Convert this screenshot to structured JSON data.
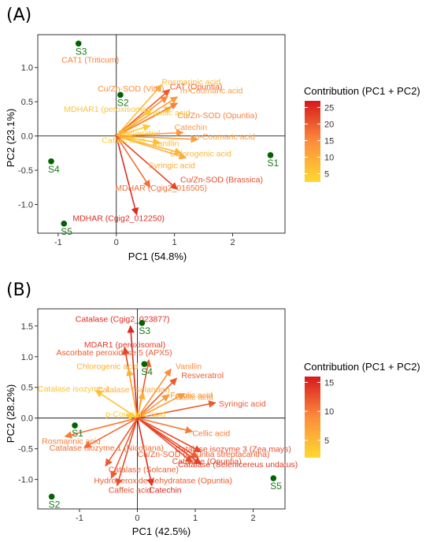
{
  "chart_data": [
    {
      "type": "scatter",
      "panel_label": "(A)",
      "xlabel": "PC1 (54.8%)",
      "ylabel": "PC2 (23.1%)",
      "xlim": [
        -1.35,
        2.9
      ],
      "ylim": [
        -1.42,
        1.48
      ],
      "xticks": [
        -1,
        0,
        1,
        2
      ],
      "yticks": [
        -1.0,
        -0.5,
        0.0,
        0.5,
        1.0
      ],
      "ytick_labels": [
        "-1.0",
        "-0.5",
        "0.0",
        "0.5",
        "1.0"
      ],
      "legend_title": "Contribution (PC1 + PC2)",
      "legend_placement": "right",
      "legend_range": [
        2.5,
        27
      ],
      "legend_ticks": [
        5,
        10,
        15,
        20,
        25
      ],
      "colors": {
        "low": "#ffd92f",
        "mid": "#fc8d3c",
        "high": "#d7191c",
        "sample": "#006400",
        "sample_label": "#1a7a1a"
      },
      "samples": [
        {
          "name": "S1",
          "x": 2.65,
          "y": -0.28
        },
        {
          "name": "S2",
          "x": 0.07,
          "y": 0.6
        },
        {
          "name": "S3",
          "x": -0.65,
          "y": 1.35
        },
        {
          "name": "S4",
          "x": -1.12,
          "y": -0.37
        },
        {
          "name": "S5",
          "x": -0.9,
          "y": -1.28
        }
      ],
      "variables": [
        {
          "name": "CAT1 (Triticum)",
          "x": -0.02,
          "y": 0.02,
          "contrib": 16
        },
        {
          "name": "Rosmarinic acid",
          "x": 0.78,
          "y": 0.75,
          "contrib": 8
        },
        {
          "name": "CAT (Opuntia)",
          "x": 0.92,
          "y": 0.68,
          "contrib": 20
        },
        {
          "name": "Cu/Zn-SOD (Vitis)",
          "x": 0.88,
          "y": 0.58,
          "contrib": 15
        },
        {
          "name": "m-Coumaric acid",
          "x": 1.05,
          "y": 0.57,
          "contrib": 12
        },
        {
          "name": "MDHAR1 (peroxisomal)",
          "x": 0.95,
          "y": 0.42,
          "contrib": 6
        },
        {
          "name": "Ferulic acid",
          "x": 0.6,
          "y": 0.38,
          "contrib": 5
        },
        {
          "name": "Cu/Zn-SOD (Opuntia)",
          "x": 1.05,
          "y": 0.48,
          "contrib": 16
        },
        {
          "name": "Resveratrol",
          "x": 0.58,
          "y": 0.15,
          "contrib": 5
        },
        {
          "name": "Catechin",
          "x": 1.15,
          "y": 0.05,
          "contrib": 13
        },
        {
          "name": "Vanillin",
          "x": 0.75,
          "y": -0.1,
          "contrib": 7
        },
        {
          "name": "Caffeic acid",
          "x": 0.3,
          "y": -0.02,
          "contrib": 4
        },
        {
          "name": "p-Coumaric acid",
          "x": 1.4,
          "y": -0.05,
          "contrib": 12
        },
        {
          "name": "Chlorogenic acid",
          "x": 1.12,
          "y": -0.25,
          "contrib": 8
        },
        {
          "name": "Syringic acid",
          "x": 1.2,
          "y": -0.32,
          "contrib": 10
        },
        {
          "name": "Cu/Zn-SOD (Brassica)",
          "x": 1.05,
          "y": -0.78,
          "contrib": 22
        },
        {
          "name": "MDHAR (Cgig2_016505)",
          "x": 0.58,
          "y": -0.75,
          "contrib": 18
        },
        {
          "name": "MDHAR (Cgig2_012250)",
          "x": 0.35,
          "y": -1.15,
          "contrib": 25
        }
      ],
      "label_style": [
        {
          "dx": -0.92,
          "dy": 1.05,
          "size": 10.5
        },
        {
          "dx": 0.0,
          "dy": 0.0,
          "size": 10.5
        },
        {
          "dx": 0.0,
          "dy": 0.0,
          "size": 10.5
        },
        {
          "dx": -1.2,
          "dy": 0.07,
          "size": 10.5
        },
        {
          "dx": 0.05,
          "dy": 0.05,
          "size": 10.5
        },
        {
          "dx": -1.85,
          "dy": -0.07,
          "size": 10.5
        },
        {
          "dx": -0.06,
          "dy": -0.08,
          "size": 10.5
        },
        {
          "dx": 0.0,
          "dy": -0.22,
          "size": 10.5
        },
        {
          "dx": -0.55,
          "dy": -0.15,
          "size": 10.5
        },
        {
          "dx": -0.15,
          "dy": 0.04,
          "size": 10.5
        },
        {
          "dx": -0.12,
          "dy": -0.05,
          "size": 10.5
        },
        {
          "dx": -0.55,
          "dy": -0.08,
          "size": 10.5
        },
        {
          "dx": -0.05,
          "dy": 0.0,
          "size": 10.5
        },
        {
          "dx": -0.2,
          "dy": -0.05,
          "size": 10.5
        },
        {
          "dx": -0.65,
          "dy": -0.15,
          "size": 10.5
        },
        {
          "dx": 0.05,
          "dy": 0.1,
          "size": 10.5
        },
        {
          "dx": -0.6,
          "dy": -0.05,
          "size": 10.5
        },
        {
          "dx": -1.1,
          "dy": -0.09,
          "size": 10.5
        }
      ]
    },
    {
      "type": "scatter",
      "panel_label": "(B)",
      "xlabel": "PC1 (42.5%)",
      "ylabel": "PC2 (28.2%)",
      "xlim": [
        -1.72,
        2.55
      ],
      "ylim": [
        -1.48,
        1.78
      ],
      "xticks": [
        -1,
        0,
        1,
        2
      ],
      "yticks": [
        -1.0,
        -0.5,
        0.0,
        0.5,
        1.0,
        1.5
      ],
      "ytick_labels": [
        "-1.0",
        "-0.5",
        "0.0",
        "0.5",
        "1.0",
        "1.5"
      ],
      "legend_title": "Contribution (PC1 + PC2)",
      "legend_placement": "right",
      "legend_range": [
        2,
        16
      ],
      "legend_ticks": [
        5,
        10,
        15
      ],
      "colors": {
        "low": "#ffd92f",
        "mid": "#fc8d3c",
        "high": "#d7191c",
        "sample": "#006400",
        "sample_label": "#1a7a1a"
      },
      "samples": [
        {
          "name": "S1",
          "x": -1.08,
          "y": -0.12
        },
        {
          "name": "S2",
          "x": -1.48,
          "y": -1.28
        },
        {
          "name": "S3",
          "x": 0.08,
          "y": 1.55
        },
        {
          "name": "S4",
          "x": 0.12,
          "y": 0.88
        },
        {
          "name": "S5",
          "x": 2.35,
          "y": -0.98
        }
      ],
      "variables": [
        {
          "name": "Catalase (Cgig2_023877)",
          "x": -0.12,
          "y": 1.5,
          "contrib": 15
        },
        {
          "name": "MDAR1 (peroxisomal)",
          "x": -0.22,
          "y": 1.15,
          "contrib": 14
        },
        {
          "name": "Ascorbate peroxidase 5 (APX5)",
          "x": 0.2,
          "y": 0.95,
          "contrib": 12
        },
        {
          "name": "Vanillin",
          "x": 0.58,
          "y": 0.8,
          "contrib": 9
        },
        {
          "name": "Chlorogenic acid",
          "x": -0.15,
          "y": 0.8,
          "contrib": 6
        },
        {
          "name": "Resveratrol",
          "x": 0.68,
          "y": 0.65,
          "contrib": 12
        },
        {
          "name": "Catalase isozyme 1",
          "x": -0.72,
          "y": 0.45,
          "contrib": 4
        },
        {
          "name": "Catalase (Solanum)",
          "x": 0.1,
          "y": 0.42,
          "contrib": 6
        },
        {
          "name": "Gallic acid",
          "x": 0.55,
          "y": 0.38,
          "contrib": 8
        },
        {
          "name": "Ferulic acid",
          "x": 0.82,
          "y": 0.4,
          "contrib": 8
        },
        {
          "name": "Syringic acid",
          "x": 1.35,
          "y": 0.25,
          "contrib": 12
        },
        {
          "name": "p-Coumaric acid",
          "x": -0.2,
          "y": 0.05,
          "contrib": 3
        },
        {
          "name": "Rosmarinic acid",
          "x": -1.25,
          "y": -0.3,
          "contrib": 10
        },
        {
          "name": "Cellic acid",
          "x": 0.95,
          "y": -0.22,
          "contrib": 10
        },
        {
          "name": "Catalase isozyme 3 (Zea mays)",
          "x": 1.1,
          "y": -0.55,
          "contrib": 13
        },
        {
          "name": "Catalase isozyme 1 (Nicotiana)",
          "x": -0.92,
          "y": -0.48,
          "contrib": 11
        },
        {
          "name": "Cu/Zn-SOD (Opuntia streptacantha)",
          "x": 1.05,
          "y": -0.65,
          "contrib": 12
        },
        {
          "name": "Catalase (Selenicereus undatus)",
          "x": 1.1,
          "y": -0.75,
          "contrib": 14
        },
        {
          "name": "Catalase (Solcane)",
          "x": -0.55,
          "y": -0.78,
          "contrib": 12
        },
        {
          "name": "Catalase (Opuntia)",
          "x": 0.95,
          "y": -0.72,
          "contrib": 13
        },
        {
          "name": "Hydroperoxide dehydratase (Opuntia)",
          "x": -0.45,
          "y": -0.98,
          "contrib": 12
        },
        {
          "name": "Caffeic acid",
          "x": -0.35,
          "y": -1.1,
          "contrib": 13
        },
        {
          "name": "Catechin",
          "x": 0.25,
          "y": -1.1,
          "contrib": 15
        }
      ],
      "label_style": [
        {
          "dx": -0.95,
          "dy": 0.07,
          "size": 10.5
        },
        {
          "dx": -0.7,
          "dy": 0.0,
          "size": 10.5
        },
        {
          "dx": -1.6,
          "dy": 0.07,
          "size": 10.5
        },
        {
          "dx": 0.08,
          "dy": 0.0,
          "size": 10.5
        },
        {
          "dx": -0.9,
          "dy": 0.0,
          "size": 10.5
        },
        {
          "dx": 0.08,
          "dy": 0.0,
          "size": 10.5
        },
        {
          "dx": -1.0,
          "dy": -0.02,
          "size": 10.5
        },
        {
          "dx": -0.8,
          "dy": 0.0,
          "size": 10.5
        },
        {
          "dx": 0.1,
          "dy": -0.08,
          "size": 10.5
        },
        {
          "dx": -0.25,
          "dy": -0.07,
          "size": 10.5
        },
        {
          "dx": 0.06,
          "dy": -0.06,
          "size": 10.5
        },
        {
          "dx": -0.35,
          "dy": -0.03,
          "size": 10.5
        },
        {
          "dx": -0.4,
          "dy": -0.12,
          "size": 10.5
        },
        {
          "dx": 0.0,
          "dy": -0.07,
          "size": 10.5
        },
        {
          "dx": -0.45,
          "dy": 0.0,
          "size": 10.5
        },
        {
          "dx": -0.6,
          "dy": -0.05,
          "size": 10.5
        },
        {
          "dx": -1.05,
          "dy": 0.02,
          "size": 10.5
        },
        {
          "dx": -0.4,
          "dy": -0.05,
          "size": 10.5
        },
        {
          "dx": 0.05,
          "dy": -0.1,
          "size": 10.5
        },
        {
          "dx": -0.35,
          "dy": -0.03,
          "size": 10.5
        },
        {
          "dx": -0.3,
          "dy": -0.08,
          "size": 10.5
        },
        {
          "dx": -0.15,
          "dy": -0.12,
          "size": 10.5
        },
        {
          "dx": -0.05,
          "dy": -0.12,
          "size": 10.5
        }
      ]
    }
  ]
}
